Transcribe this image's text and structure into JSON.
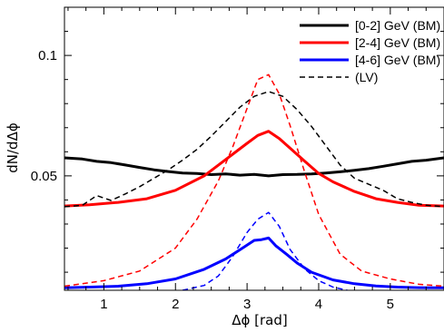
{
  "chart_data": {
    "type": "line",
    "xlabel": "Δϕ [rad]",
    "ylabel": "dN/dΔϕ",
    "xlim": [
      0.45,
      5.75
    ],
    "ylim": [
      0.0025,
      0.12
    ],
    "x_ticks": [
      1,
      2,
      3,
      4,
      5
    ],
    "y_ticks": [
      0.05,
      0.1
    ],
    "x_tick_labels": [
      "1",
      "2",
      "3",
      "4",
      "5"
    ],
    "y_tick_labels": [
      "0.05",
      "0.1"
    ],
    "grid": false,
    "legend": "top-right",
    "series": [
      {
        "name": "[0-2] GeV (BM)",
        "color": "#000000",
        "dash": "solid",
        "x": [
          0.45,
          0.7,
          0.9,
          1.1,
          1.3,
          1.5,
          1.7,
          1.9,
          2.1,
          2.3,
          2.5,
          2.7,
          2.9,
          3.1,
          3.3,
          3.5,
          3.7,
          3.9,
          4.1,
          4.3,
          4.5,
          4.7,
          4.9,
          5.1,
          5.3,
          5.5,
          5.75
        ],
        "y": [
          0.0575,
          0.057,
          0.056,
          0.0555,
          0.0545,
          0.0535,
          0.0525,
          0.0518,
          0.0512,
          0.051,
          0.0505,
          0.0508,
          0.0503,
          0.0506,
          0.05,
          0.0505,
          0.0506,
          0.0508,
          0.0512,
          0.0517,
          0.0523,
          0.053,
          0.054,
          0.055,
          0.056,
          0.0565,
          0.0575
        ]
      },
      {
        "name": "[2-4] GeV (BM)",
        "color": "#ff0000",
        "dash": "solid",
        "x": [
          0.45,
          0.8,
          1.2,
          1.6,
          2.0,
          2.4,
          2.8,
          3.0,
          3.15,
          3.3,
          3.45,
          3.6,
          3.8,
          4.0,
          4.2,
          4.5,
          4.8,
          5.1,
          5.4,
          5.75
        ],
        "y": [
          0.0375,
          0.038,
          0.039,
          0.0405,
          0.044,
          0.05,
          0.059,
          0.0635,
          0.0668,
          0.0685,
          0.0655,
          0.0615,
          0.0562,
          0.051,
          0.0475,
          0.0435,
          0.0405,
          0.039,
          0.0378,
          0.0375
        ]
      },
      {
        "name": "[4-6] GeV (BM)",
        "color": "#0000ff",
        "dash": "solid",
        "x": [
          0.45,
          0.8,
          1.2,
          1.6,
          2.0,
          2.4,
          2.7,
          2.9,
          3.1,
          3.2,
          3.3,
          3.4,
          3.55,
          3.7,
          3.9,
          4.2,
          4.5,
          4.8,
          5.1,
          5.4,
          5.75
        ],
        "y": [
          0.0035,
          0.0038,
          0.0042,
          0.0052,
          0.0072,
          0.0112,
          0.0155,
          0.0193,
          0.0232,
          0.0235,
          0.0242,
          0.021,
          0.0175,
          0.0138,
          0.01,
          0.0068,
          0.0052,
          0.0043,
          0.0038,
          0.0036,
          0.0035
        ]
      },
      {
        "name": "(LV)",
        "color": "#000000",
        "dash": "dashed",
        "x": [
          0.45,
          0.7,
          0.9,
          1.1,
          1.3,
          1.5,
          1.7,
          1.9,
          2.1,
          2.3,
          2.5,
          2.7,
          2.9,
          3.1,
          3.3,
          3.5,
          3.7,
          3.9,
          4.1,
          4.3,
          4.5,
          4.7,
          4.9,
          5.1,
          5.3,
          5.5,
          5.75
        ],
        "y": [
          0.0372,
          0.0378,
          0.0418,
          0.0398,
          0.0425,
          0.0455,
          0.049,
          0.0525,
          0.0565,
          0.061,
          0.0665,
          0.0725,
          0.0785,
          0.083,
          0.085,
          0.083,
          0.0775,
          0.0705,
          0.0625,
          0.0545,
          0.049,
          0.0465,
          0.044,
          0.0405,
          0.039,
          0.0378,
          0.0372
        ]
      },
      {
        "color": "#ff0000",
        "dash": "dashed",
        "x": [
          0.45,
          1.0,
          1.5,
          2.0,
          2.3,
          2.6,
          2.8,
          3.0,
          3.15,
          3.3,
          3.45,
          3.6,
          3.8,
          4.0,
          4.3,
          4.6,
          5.0,
          5.4,
          5.75
        ],
        "y": [
          0.0042,
          0.0065,
          0.0105,
          0.02,
          0.032,
          0.048,
          0.062,
          0.078,
          0.09,
          0.092,
          0.084,
          0.071,
          0.052,
          0.034,
          0.0175,
          0.0105,
          0.0072,
          0.005,
          0.0042
        ]
      },
      {
        "color": "#0000ff",
        "dash": "dashed",
        "x": [
          2.1,
          2.4,
          2.6,
          2.8,
          3.0,
          3.15,
          3.3,
          3.45,
          3.6,
          3.8,
          4.0,
          4.2,
          4.4
        ],
        "y": [
          0.0025,
          0.0045,
          0.0085,
          0.0165,
          0.0265,
          0.032,
          0.0348,
          0.029,
          0.0195,
          0.0115,
          0.0065,
          0.0038,
          0.0025
        ]
      }
    ]
  }
}
